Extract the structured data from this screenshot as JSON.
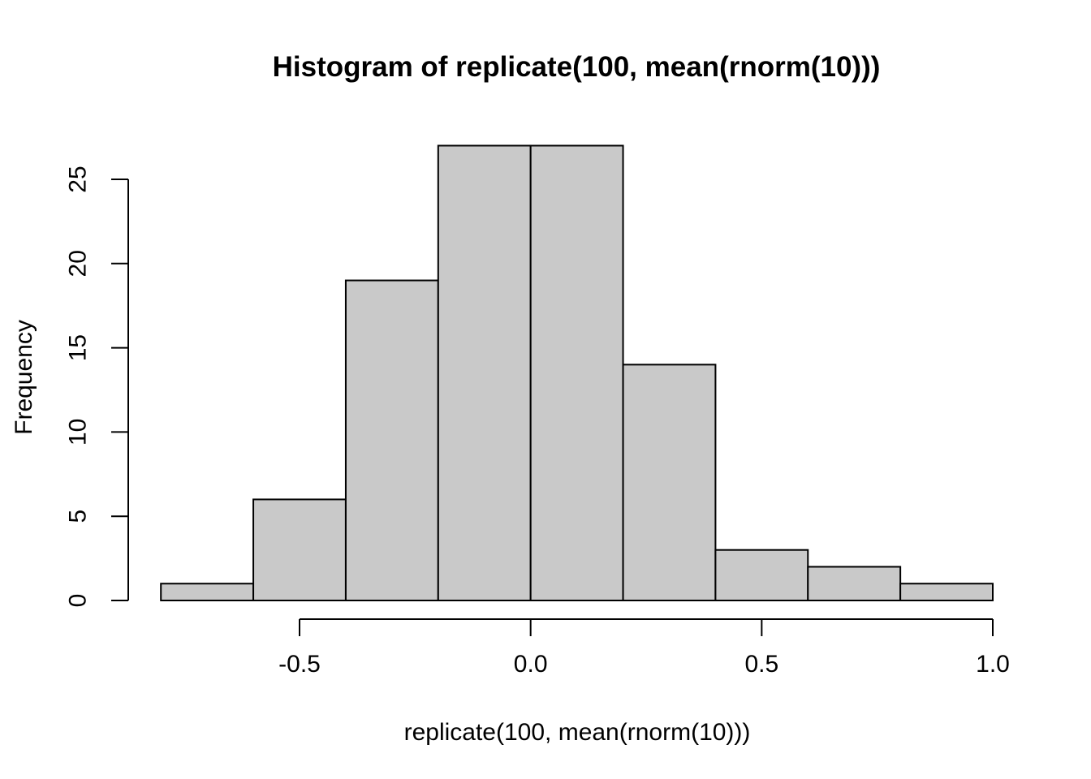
{
  "chart_data": {
    "type": "bar",
    "variant": "histogram",
    "title": "Histogram of replicate(100, mean(rnorm(10)))",
    "xlabel": "replicate(100, mean(rnorm(10)))",
    "ylabel": "Frequency",
    "bin_breaks": [
      -0.8,
      -0.6,
      -0.4,
      -0.2,
      0.0,
      0.2,
      0.4,
      0.6,
      0.8,
      1.0
    ],
    "counts": [
      1,
      6,
      19,
      27,
      27,
      14,
      3,
      2,
      1
    ],
    "x_axis": {
      "range": [
        -0.5,
        1.0
      ],
      "tick_values": [
        -0.5,
        0.0,
        0.5,
        1.0
      ],
      "tick_labels": [
        "-0.5",
        "0.0",
        "0.5",
        "1.0"
      ]
    },
    "y_axis": {
      "range": [
        0,
        25
      ],
      "tick_values": [
        0,
        5,
        10,
        15,
        20,
        25
      ],
      "tick_labels": [
        "0",
        "5",
        "10",
        "15",
        "20",
        "25"
      ]
    },
    "grid": "off",
    "legend": "none",
    "colors": {
      "bar_fill": "#C9C9C9",
      "bar_stroke": "#000000",
      "axis": "#000000",
      "text": "#000000",
      "background": "#FFFFFF"
    }
  }
}
